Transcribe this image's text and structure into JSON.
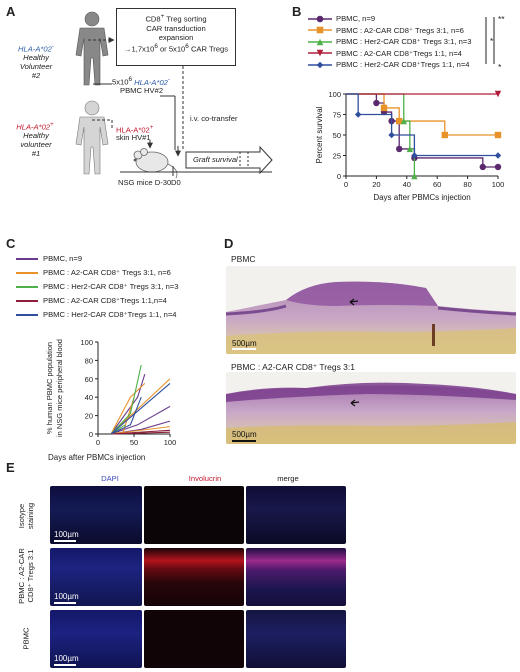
{
  "figure": {
    "panels": [
      "A",
      "B",
      "C",
      "D",
      "E"
    ]
  },
  "panel_a": {
    "volunteer2_line1": "HLA-A*02",
    "volunteer2_sup": "-",
    "volunteer2_line2": "Healthy",
    "volunteer2_line3": "Volunteer",
    "volunteer2_line4": "#2",
    "volunteer1_line1": "HLA-A*02",
    "volunteer1_sup": "+",
    "volunteer1_line2": "Healthy",
    "volunteer1_line3": "volunteer",
    "volunteer1_line4": "#1",
    "box_line1a": "CD8",
    "box_line1_sup": "+",
    "box_line1b": " Treg sorting",
    "box_line2": "CAR transduction",
    "box_line3": "expansion",
    "box_line4a": "→1,7x10",
    "box_line4_sup": "6",
    "box_line4b": " or 5x10",
    "box_line4_sup2": "6",
    "box_line4c": " CAR Tregs",
    "pbmc_line1a": "5x10",
    "pbmc_line1_sup": "6",
    "pbmc_line1b": " HLA-A*02",
    "pbmc_line1_sup2": "-",
    "pbmc_line2": "PBMC HV#2",
    "skin_line1a": "HLA-A*02",
    "skin_line1_sup": "+",
    "skin_line2": "skin HV#1",
    "iv_label": "i.v. co-transfer",
    "mice_label": "NSG mice D-30",
    "d0_label": "D0",
    "graft_label": "Graft survival",
    "colors": {
      "hla_neg": "#2e5fa8",
      "hla_pos": "#c0182f"
    }
  },
  "panel_b": {
    "chart_data": {
      "type": "line",
      "subtype": "kaplan-meier",
      "ylabel": "Percent survival",
      "xlabel": "Days after PBMCs injection",
      "xlim": [
        0,
        100
      ],
      "ylim": [
        0,
        100
      ],
      "xticks": [
        "0",
        "20",
        "40",
        "60",
        "80",
        "100"
      ],
      "yticks": [
        "0",
        "25",
        "50",
        "75",
        "100"
      ],
      "legend_placement": "top",
      "significance": [
        "*",
        "**",
        "*"
      ],
      "series": [
        {
          "name": "PBMC, n=9",
          "color": "#5b2a6e",
          "marker": "circle",
          "x": [
            0,
            20,
            25,
            30,
            35,
            45,
            90,
            100
          ],
          "y": [
            100,
            89,
            78,
            67,
            33,
            22,
            11,
            11
          ]
        },
        {
          "name": "PBMC : A2-CAR CD8⁺ Tregs 3:1, n=6",
          "color": "#e8932a",
          "marker": "square",
          "x": [
            0,
            25,
            35,
            50,
            65,
            100
          ],
          "y": [
            100,
            83,
            67,
            67,
            50,
            50
          ]
        },
        {
          "name": "PBMC : Her2-CAR CD8⁺ Tregs 3:1, n=3",
          "color": "#4fb04a",
          "marker": "triangle-up",
          "x": [
            0,
            38,
            42,
            45
          ],
          "y": [
            100,
            67,
            33,
            0
          ]
        },
        {
          "name": "PBMC : A2-CAR CD8⁺Tregs 1:1, n=4",
          "color": "#b01e3a",
          "marker": "triangle-down",
          "x": [
            0,
            100
          ],
          "y": [
            100,
            100
          ]
        },
        {
          "name": "PBMC : Her2-CAR CD8⁺Tregs 1:1, n=4",
          "color": "#2f4f9e",
          "marker": "diamond",
          "x": [
            0,
            8,
            30,
            45,
            100
          ],
          "y": [
            100,
            75,
            50,
            25,
            25
          ]
        }
      ]
    }
  },
  "panel_c": {
    "chart_data": {
      "type": "line",
      "ylabel": "% human PBMC population in NSG mice peripheral blood",
      "xlabel": "Days after PBMCs injection",
      "xlim": [
        0,
        100
      ],
      "ylim": [
        0,
        100
      ],
      "xticks": [
        "0",
        "50",
        "100"
      ],
      "yticks": [
        "0",
        "20",
        "40",
        "60",
        "80",
        "100"
      ],
      "legend_placement": "top",
      "series": [
        {
          "name": "PBMC, n=9",
          "color": "#6a3b8c",
          "lines": [
            {
              "x": [
                18,
                55,
                65
              ],
              "y": [
                0,
                40,
                65
              ]
            },
            {
              "x": [
                18,
                45
              ],
              "y": [
                0,
                20
              ]
            },
            {
              "x": [
                18,
                55,
                100
              ],
              "y": [
                0,
                10,
                30
              ]
            },
            {
              "x": [
                18,
                60,
                100
              ],
              "y": [
                0,
                5,
                14
              ]
            }
          ]
        },
        {
          "name": "PBMC : A2-CAR CD8⁺ Tregs 3:1, n=6",
          "color": "#e8932a",
          "lines": [
            {
              "x": [
                18,
                45,
                65
              ],
              "y": [
                0,
                40,
                55
              ]
            },
            {
              "x": [
                18,
                35,
                50
              ],
              "y": [
                0,
                2,
                40
              ]
            },
            {
              "x": [
                18,
                100
              ],
              "y": [
                0,
                60
              ]
            },
            {
              "x": [
                18,
                100
              ],
              "y": [
                0,
                8
              ]
            }
          ]
        },
        {
          "name": "PBMC : Her2-CAR CD8⁺ Tregs 3:1, n=3",
          "color": "#4fb04a",
          "lines": [
            {
              "x": [
                18,
                45,
                60
              ],
              "y": [
                0,
                22,
                75
              ]
            },
            {
              "x": [
                18,
                38
              ],
              "y": [
                0,
                10
              ]
            }
          ]
        },
        {
          "name": "PBMC : A2-CAR CD8⁺Tregs 1:1,n=4",
          "color": "#8c1f3a",
          "lines": [
            {
              "x": [
                18,
                100
              ],
              "y": [
                0,
                4
              ]
            },
            {
              "x": [
                18,
                100
              ],
              "y": [
                0,
                2
              ]
            }
          ]
        },
        {
          "name": "PBMC : Her2-CAR CD8⁺Tregs 1:1, n=4",
          "color": "#2f4f9e",
          "lines": [
            {
              "x": [
                18,
                45,
                60
              ],
              "y": [
                0,
                10,
                40
              ]
            },
            {
              "x": [
                18,
                100
              ],
              "y": [
                0,
                55
              ]
            }
          ]
        }
      ]
    }
  },
  "panel_d": {
    "top_label": "PBMC",
    "bottom_label": "PBMC : A2-CAR CD8⁺ Tregs 3:1",
    "scale_top": "500µm",
    "scale_bottom": "500µm"
  },
  "panel_e": {
    "col_dapi": "DAPI",
    "col_involucrin": "Involucrin",
    "col_merge": "merge",
    "row1_label_a": "Isotype",
    "row1_label_b": "staining",
    "row2_label_a": "PBMC : A2-CAR",
    "row2_label_b": "CD8⁺ Tregs 3:1",
    "row3_label": "PBMC",
    "scale1": "100µm",
    "scale2": "100µm",
    "scale3": "100µm",
    "colors": {
      "dapi": "#4a5ad8",
      "involucrin": "#c0182f"
    }
  }
}
